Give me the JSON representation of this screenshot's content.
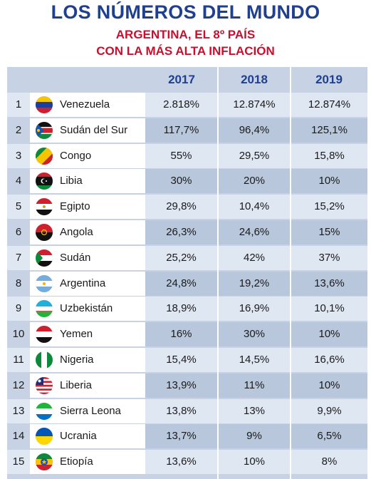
{
  "header": {
    "title": "LOS NÚMEROS DEL MUNDO",
    "subtitle_line1": "ARGENTINA, EL 8º PAÍS",
    "subtitle_line2": "CON LA MÁS ALTA INFLACIÓN"
  },
  "table": {
    "years": [
      "2017",
      "2018",
      "2019"
    ],
    "rows": [
      {
        "rank": "1",
        "country": "Venezuela",
        "flag_icon": "venezuela-flag-icon",
        "v2017": "2.818%",
        "v2018": "12.874%",
        "v2019": "12.874%"
      },
      {
        "rank": "2",
        "country": "Sudán del Sur",
        "flag_icon": "south-sudan-flag-icon",
        "v2017": "117,7%",
        "v2018": "96,4%",
        "v2019": "125,1%"
      },
      {
        "rank": "3",
        "country": "Congo",
        "flag_icon": "congo-flag-icon",
        "v2017": "55%",
        "v2018": "29,5%",
        "v2019": "15,8%"
      },
      {
        "rank": "4",
        "country": "Libia",
        "flag_icon": "libya-flag-icon",
        "v2017": "30%",
        "v2018": "20%",
        "v2019": "10%"
      },
      {
        "rank": "5",
        "country": "Egipto",
        "flag_icon": "egypt-flag-icon",
        "v2017": "29,8%",
        "v2018": "10,4%",
        "v2019": "15,2%"
      },
      {
        "rank": "6",
        "country": "Angola",
        "flag_icon": "angola-flag-icon",
        "v2017": "26,3%",
        "v2018": "24,6%",
        "v2019": "15%"
      },
      {
        "rank": "7",
        "country": "Sudán",
        "flag_icon": "sudan-flag-icon",
        "v2017": "25,2%",
        "v2018": "42%",
        "v2019": "37%"
      },
      {
        "rank": "8",
        "country": "Argentina",
        "flag_icon": "argentina-flag-icon",
        "v2017": "24,8%",
        "v2018": "19,2%",
        "v2019": "13,6%"
      },
      {
        "rank": "9",
        "country": "Uzbekistán",
        "flag_icon": "uzbekistan-flag-icon",
        "v2017": "18,9%",
        "v2018": "16,9%",
        "v2019": "10,1%"
      },
      {
        "rank": "10",
        "country": "Yemen",
        "flag_icon": "yemen-flag-icon",
        "v2017": "16%",
        "v2018": "30%",
        "v2019": "10%"
      },
      {
        "rank": "11",
        "country": "Nigeria",
        "flag_icon": "nigeria-flag-icon",
        "v2017": "15,4%",
        "v2018": "14,5%",
        "v2019": "16,6%"
      },
      {
        "rank": "12",
        "country": "Liberia",
        "flag_icon": "liberia-flag-icon",
        "v2017": "13,9%",
        "v2018": "11%",
        "v2019": "10%"
      },
      {
        "rank": "13",
        "country": "Sierra Leona",
        "flag_icon": "sierra-leone-flag-icon",
        "v2017": "13,8%",
        "v2018": "13%",
        "v2019": "9,9%"
      },
      {
        "rank": "14",
        "country": "Ucrania",
        "flag_icon": "ukraine-flag-icon",
        "v2017": "13,7%",
        "v2018": "9%",
        "v2019": "6,5%"
      },
      {
        "rank": "15",
        "country": "Etiopía",
        "flag_icon": "ethiopia-flag-icon",
        "v2017": "13,6%",
        "v2018": "10%",
        "v2019": "8%"
      }
    ]
  },
  "colors": {
    "title": "#1f3f8f",
    "subtitle": "#c8102e",
    "table_bg": "#c7d3e4"
  }
}
